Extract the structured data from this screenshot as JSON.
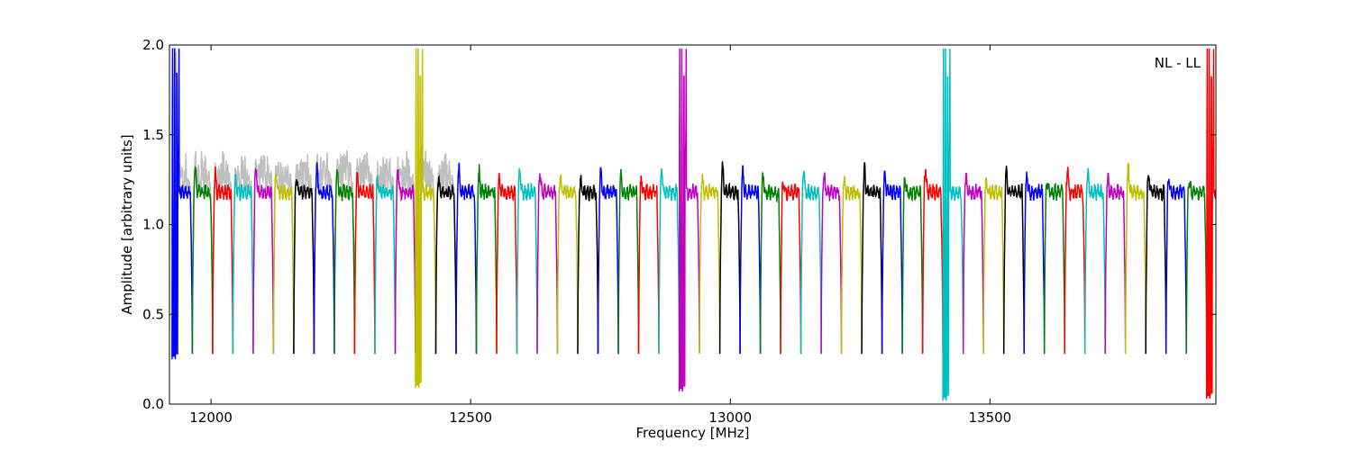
{
  "chart_data": {
    "type": "line",
    "title": "",
    "xlabel": "Frequency [MHz]",
    "ylabel": "Amplitude [arbitrary units]",
    "xlim": [
      11920,
      13935
    ],
    "ylim": [
      0.0,
      2.0
    ],
    "xticks": [
      12000,
      12500,
      13000,
      13500
    ],
    "yticks": [
      0.0,
      0.5,
      1.0,
      1.5,
      2.0
    ],
    "ytick_labels": [
      "0.0",
      "0.5",
      "1.0",
      "1.5",
      "2.0"
    ],
    "grid": false,
    "annotation": "NL - LL",
    "annotation_position": "top-right",
    "background_series_color": "#bfbfbf",
    "color_cycle": [
      "#0000ff",
      "#008000",
      "#ff0000",
      "#00bfbf",
      "#bf00bf",
      "#bfbf00",
      "#000000"
    ],
    "band": {
      "start_mhz": 11925,
      "spacing_mhz": 39.0625,
      "count": 52,
      "edge_low": 0.28,
      "baseline": 1.18,
      "ripple": 0.05,
      "shoulder_peak": 1.3
    },
    "spikes": [
      {
        "x": 11940,
        "band_index": 0,
        "peak": 2.0,
        "low": 0.25
      },
      {
        "x": 12420,
        "band_index": 12,
        "peak": 2.0,
        "low": 0.09
      },
      {
        "x": 12920,
        "band_index": 25,
        "peak": 2.0,
        "low": 0.07
      },
      {
        "x": 13420,
        "band_index": 38,
        "peak": 2.0,
        "low": 0.02
      },
      {
        "x": 13925,
        "band_index": 51,
        "peak": 2.0,
        "low": 0.03
      }
    ]
  }
}
